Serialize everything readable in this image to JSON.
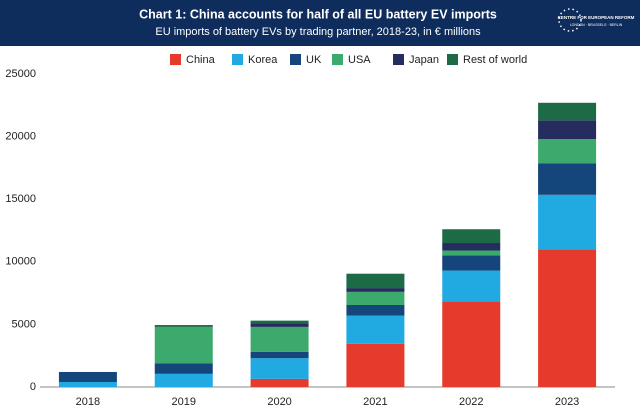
{
  "chart_data": {
    "type": "stacked-bar",
    "title": "Chart 1: China accounts for half of all EU battery EV imports",
    "subtitle": "EU imports of battery EVs by trading partner, 2018-23, in € millions",
    "source_logo": "CENTRE FOR EUROPEAN REFORM",
    "source_logo_cities": "LONDON · BRUSSELS · BERLIN",
    "categories": [
      "2018",
      "2019",
      "2020",
      "2021",
      "2022",
      "2023"
    ],
    "series": [
      {
        "name": "China",
        "color": "#e63a2c",
        "values": [
          0,
          0,
          650,
          3450,
          6850,
          11000
        ]
      },
      {
        "name": "Korea",
        "color": "#21a9e1",
        "values": [
          400,
          1050,
          1650,
          2250,
          2450,
          4350
        ]
      },
      {
        "name": "UK",
        "color": "#15467b",
        "values": [
          800,
          850,
          500,
          850,
          1200,
          2500
        ]
      },
      {
        "name": "USA",
        "color": "#3caa6c",
        "values": [
          0,
          2900,
          2000,
          1050,
          400,
          1950
        ]
      },
      {
        "name": "Japan",
        "color": "#252d5e",
        "values": [
          0,
          0,
          300,
          300,
          600,
          1500
        ]
      },
      {
        "name": "Rest of world",
        "color": "#1c6b46",
        "values": [
          0,
          150,
          200,
          1150,
          1100,
          1400
        ]
      }
    ],
    "ylim": [
      0,
      25000
    ],
    "yticks": [
      0,
      5000,
      10000,
      15000,
      20000,
      25000
    ],
    "grid": false,
    "legend": "top"
  }
}
